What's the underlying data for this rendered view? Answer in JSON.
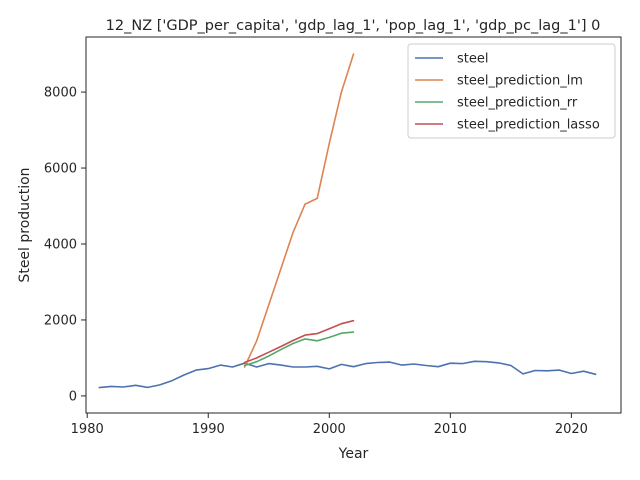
{
  "chart_data": {
    "type": "line",
    "title": "12_NZ ['GDP_per_capita', 'gdp_lag_1', 'pop_lag_1', 'gdp_pc_lag_1'] 0",
    "xlabel": "Year",
    "ylabel": "Steel production",
    "xlim": [
      1979.9,
      2024.1
    ],
    "ylim": [
      -450,
      9450
    ],
    "x_ticks": [
      1980,
      1990,
      2000,
      2010,
      2020
    ],
    "y_ticks": [
      0,
      2000,
      4000,
      6000,
      8000
    ],
    "legend_position": "top-right",
    "grid": false,
    "series": [
      {
        "name": "steel",
        "color": "#4c72b0",
        "x": [
          1981,
          1982,
          1983,
          1984,
          1985,
          1986,
          1987,
          1988,
          1989,
          1990,
          1991,
          1992,
          1993,
          1994,
          1995,
          1996,
          1997,
          1998,
          1999,
          2000,
          2001,
          2002,
          2003,
          2004,
          2005,
          2006,
          2007,
          2008,
          2009,
          2010,
          2011,
          2012,
          2013,
          2014,
          2015,
          2016,
          2017,
          2018,
          2019,
          2020,
          2021,
          2022
        ],
        "y": [
          220,
          250,
          235,
          280,
          225,
          290,
          400,
          550,
          680,
          720,
          810,
          760,
          860,
          760,
          850,
          810,
          760,
          760,
          780,
          710,
          830,
          770,
          850,
          880,
          890,
          810,
          840,
          800,
          770,
          860,
          850,
          910,
          900,
          870,
          800,
          580,
          670,
          660,
          680,
          590,
          650,
          570
        ]
      },
      {
        "name": "steel_prediction_lm",
        "color": "#dd8452",
        "x": [
          1993,
          1994,
          1995,
          1996,
          1997,
          1998,
          1999,
          2000,
          2001,
          2002
        ],
        "y": [
          760,
          1450,
          2400,
          3350,
          4300,
          5050,
          5200,
          6650,
          8000,
          9000
        ]
      },
      {
        "name": "steel_prediction_rr",
        "color": "#55a868",
        "x": [
          1993,
          1994,
          1995,
          1996,
          1997,
          1998,
          1999,
          2000,
          2001,
          2002
        ],
        "y": [
          800,
          900,
          1050,
          1220,
          1380,
          1500,
          1450,
          1540,
          1650,
          1680
        ]
      },
      {
        "name": "steel_prediction_lasso",
        "color": "#c44e52",
        "x": [
          1993,
          1994,
          1995,
          1996,
          1997,
          1998,
          1999,
          2000,
          2001,
          2002
        ],
        "y": [
          880,
          1000,
          1150,
          1300,
          1460,
          1600,
          1640,
          1770,
          1900,
          1980
        ]
      }
    ]
  }
}
